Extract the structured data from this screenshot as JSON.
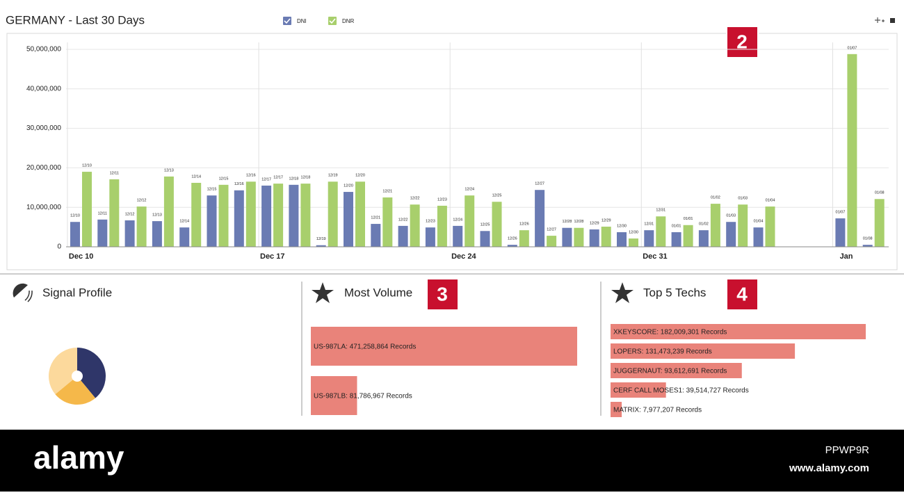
{
  "chart_data": [
    {
      "type": "bar",
      "title": "GERMANY - Last 30 Days",
      "categories": [
        "12/10",
        "12/11",
        "12/12",
        "12/13",
        "12/14",
        "12/15",
        "12/16",
        "12/17",
        "12/18",
        "12/19",
        "12/20",
        "12/21",
        "12/22",
        "12/23",
        "12/24",
        "12/25",
        "12/26",
        "12/27",
        "12/28",
        "12/29",
        "12/30",
        "12/31",
        "01/01",
        "01/02",
        "01/03",
        "01/04",
        null,
        null,
        "01/07",
        "01/08"
      ],
      "series": [
        {
          "name": "DNI",
          "color": "#6a7bb3",
          "values": [
            6300000,
            6900000,
            6700000,
            6500000,
            4900000,
            13000000,
            14300000,
            15500000,
            15700000,
            400000,
            13900000,
            5800000,
            5300000,
            4900000,
            5300000,
            4000000,
            500000,
            14400000,
            4800000,
            4400000,
            3700000,
            4200000,
            3700000,
            4200000,
            6300000,
            4900000,
            null,
            null,
            7200000,
            500000
          ]
        },
        {
          "name": "DNR",
          "color": "#a8cf6c",
          "values": [
            19000000,
            17100000,
            10200000,
            17800000,
            16200000,
            15700000,
            16500000,
            16000000,
            16000000,
            16500000,
            16500000,
            12500000,
            10700000,
            10400000,
            13000000,
            11400000,
            4200000,
            2800000,
            4800000,
            5100000,
            2100000,
            7700000,
            5500000,
            10900000,
            10700000,
            10200000,
            null,
            null,
            48800000,
            12100000
          ]
        }
      ],
      "ylim": [
        0,
        50000000
      ],
      "yticks": [
        0,
        {
          "value": 10000000,
          "label": "10,000,000"
        },
        {
          "value": 20000000,
          "label": "20,000,000"
        },
        {
          "value": 30000000,
          "label": "30,000,000"
        },
        {
          "value": 40000000,
          "label": "40,000,000"
        },
        {
          "value": 50000000,
          "label": "50,000,000"
        }
      ],
      "xticks": [
        {
          "value": "12/10",
          "label": "Dec 10"
        },
        {
          "value": "12/17",
          "label": "Dec 17"
        },
        {
          "value": "12/24",
          "label": "Dec 24"
        },
        {
          "value": "12/31",
          "label": "Dec 31"
        },
        {
          "value": "01/07",
          "label": "Jan"
        }
      ],
      "grid": true
    },
    {
      "type": "pie",
      "title": "Signal Profile",
      "values": [
        39,
        25,
        36
      ],
      "colors": [
        "#2f3669",
        "#f5b84a",
        "#fcd99c"
      ]
    },
    {
      "type": "hbar",
      "title": "Most Volume",
      "color": "#e9837a",
      "values": [
        471258864,
        81786967
      ],
      "value_labels": [
        "US-987LA: 471,258,864 Records",
        "US-987LB: 81,786,967 Records"
      ]
    },
    {
      "type": "hbar",
      "title": "Top 5 Techs",
      "color": "#e9837a",
      "values": [
        182009301,
        131473239,
        93612691,
        39514727,
        7977207
      ],
      "value_labels": [
        "XKEYSCORE: 182,009,301 Records",
        "LOPERS: 131,473,239 Records",
        "JUGGERNAUT: 93,612,691 Records",
        "CERF CALL MOSES1: 39,514,727 Records",
        "MATRIX: 7,977,207 Records"
      ]
    }
  ],
  "annotations": [
    "2",
    "3",
    "4"
  ],
  "footer": {
    "brand": "alamy",
    "image_id": "PPWP9R",
    "url": "www.alamy.com"
  }
}
